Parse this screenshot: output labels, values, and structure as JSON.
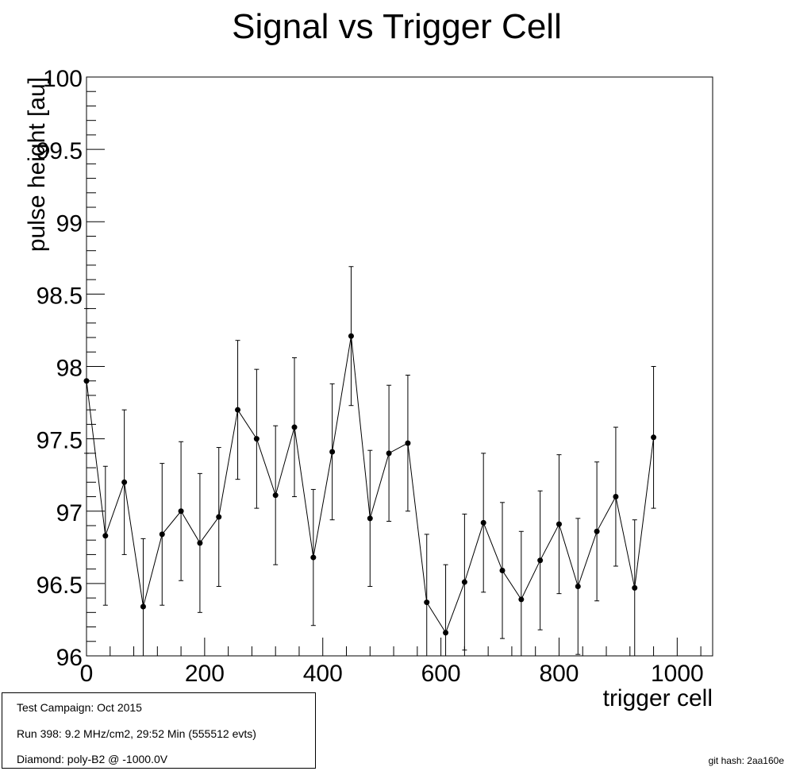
{
  "chart_data": {
    "type": "scatter",
    "title": "Signal vs Trigger Cell",
    "xlabel": "trigger cell",
    "ylabel": "pulse height [au]",
    "xlim": [
      0,
      1060
    ],
    "ylim": [
      96,
      100
    ],
    "xticks": [
      0,
      200,
      400,
      600,
      800,
      1000
    ],
    "yticks": [
      96,
      96.5,
      97,
      97.5,
      98,
      98.5,
      99,
      99.5,
      100
    ],
    "x_tick_labels": [
      "0",
      "200",
      "400",
      "600",
      "800",
      "1000"
    ],
    "y_tick_labels": [
      "96",
      "96.5",
      "97",
      "97.5",
      "98",
      "98.5",
      "99",
      "99.5",
      "100"
    ],
    "grid": false,
    "series": [
      {
        "x": [
          0,
          32,
          64,
          96,
          128,
          160,
          192,
          224,
          256,
          288,
          320,
          352,
          384,
          416,
          448,
          480,
          512,
          544,
          576,
          608,
          640,
          672,
          704,
          736,
          768,
          800,
          832,
          864,
          896,
          928,
          960
        ],
        "y": [
          97.9,
          96.83,
          97.2,
          96.34,
          96.84,
          97.0,
          96.78,
          96.96,
          97.7,
          97.5,
          97.11,
          97.58,
          96.68,
          97.41,
          98.21,
          96.95,
          97.4,
          97.47,
          96.37,
          96.16,
          96.51,
          96.92,
          96.59,
          96.39,
          96.66,
          96.91,
          96.48,
          96.86,
          97.1,
          96.47,
          97.51
        ],
        "yerr": [
          0.5,
          0.48,
          0.5,
          0.47,
          0.49,
          0.48,
          0.48,
          0.48,
          0.48,
          0.48,
          0.48,
          0.48,
          0.47,
          0.47,
          0.48,
          0.47,
          0.47,
          0.47,
          0.47,
          0.47,
          0.47,
          0.48,
          0.47,
          0.47,
          0.48,
          0.48,
          0.47,
          0.48,
          0.48,
          0.47,
          0.49
        ]
      }
    ]
  },
  "info": {
    "line1": "Test Campaign: Oct 2015",
    "line2": "Run 398: 9.2 MHz/cm2, 29:52 Min (555512 evts)",
    "line3": "Diamond: poly-B2 @ -1000.0V"
  },
  "git_hash": "git hash: 2aa160e"
}
